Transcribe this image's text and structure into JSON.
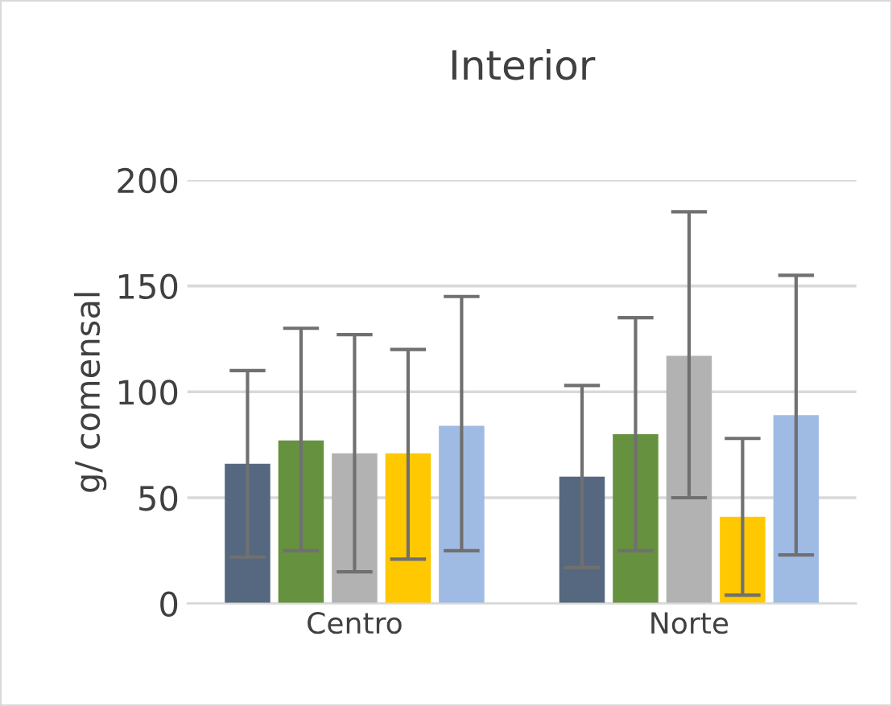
{
  "chart_data": {
    "type": "bar",
    "title": "Interior",
    "ylabel": "g/ comensal",
    "categories": [
      "Centro",
      "Norte"
    ],
    "series": [
      {
        "color": "#56687f",
        "values": [
          66,
          60
        ],
        "errors": [
          [
            22,
            110
          ],
          [
            17,
            103
          ]
        ]
      },
      {
        "color": "#66913f",
        "values": [
          77,
          80
        ],
        "errors": [
          [
            25,
            130
          ],
          [
            25,
            135
          ]
        ]
      },
      {
        "color": "#b2b2b2",
        "values": [
          71,
          117
        ],
        "errors": [
          [
            15,
            127
          ],
          [
            50,
            185
          ]
        ]
      },
      {
        "color": "#ffc800",
        "values": [
          71,
          41
        ],
        "errors": [
          [
            21,
            120
          ],
          [
            4,
            78
          ]
        ]
      },
      {
        "color": "#9fbbe3",
        "values": [
          84,
          89
        ],
        "errors": [
          [
            25,
            145
          ],
          [
            23,
            155
          ]
        ]
      }
    ],
    "ylim": [
      0,
      200
    ],
    "yticks": [
      0,
      50,
      100,
      150,
      200
    ],
    "grid": "y",
    "legend": false
  }
}
